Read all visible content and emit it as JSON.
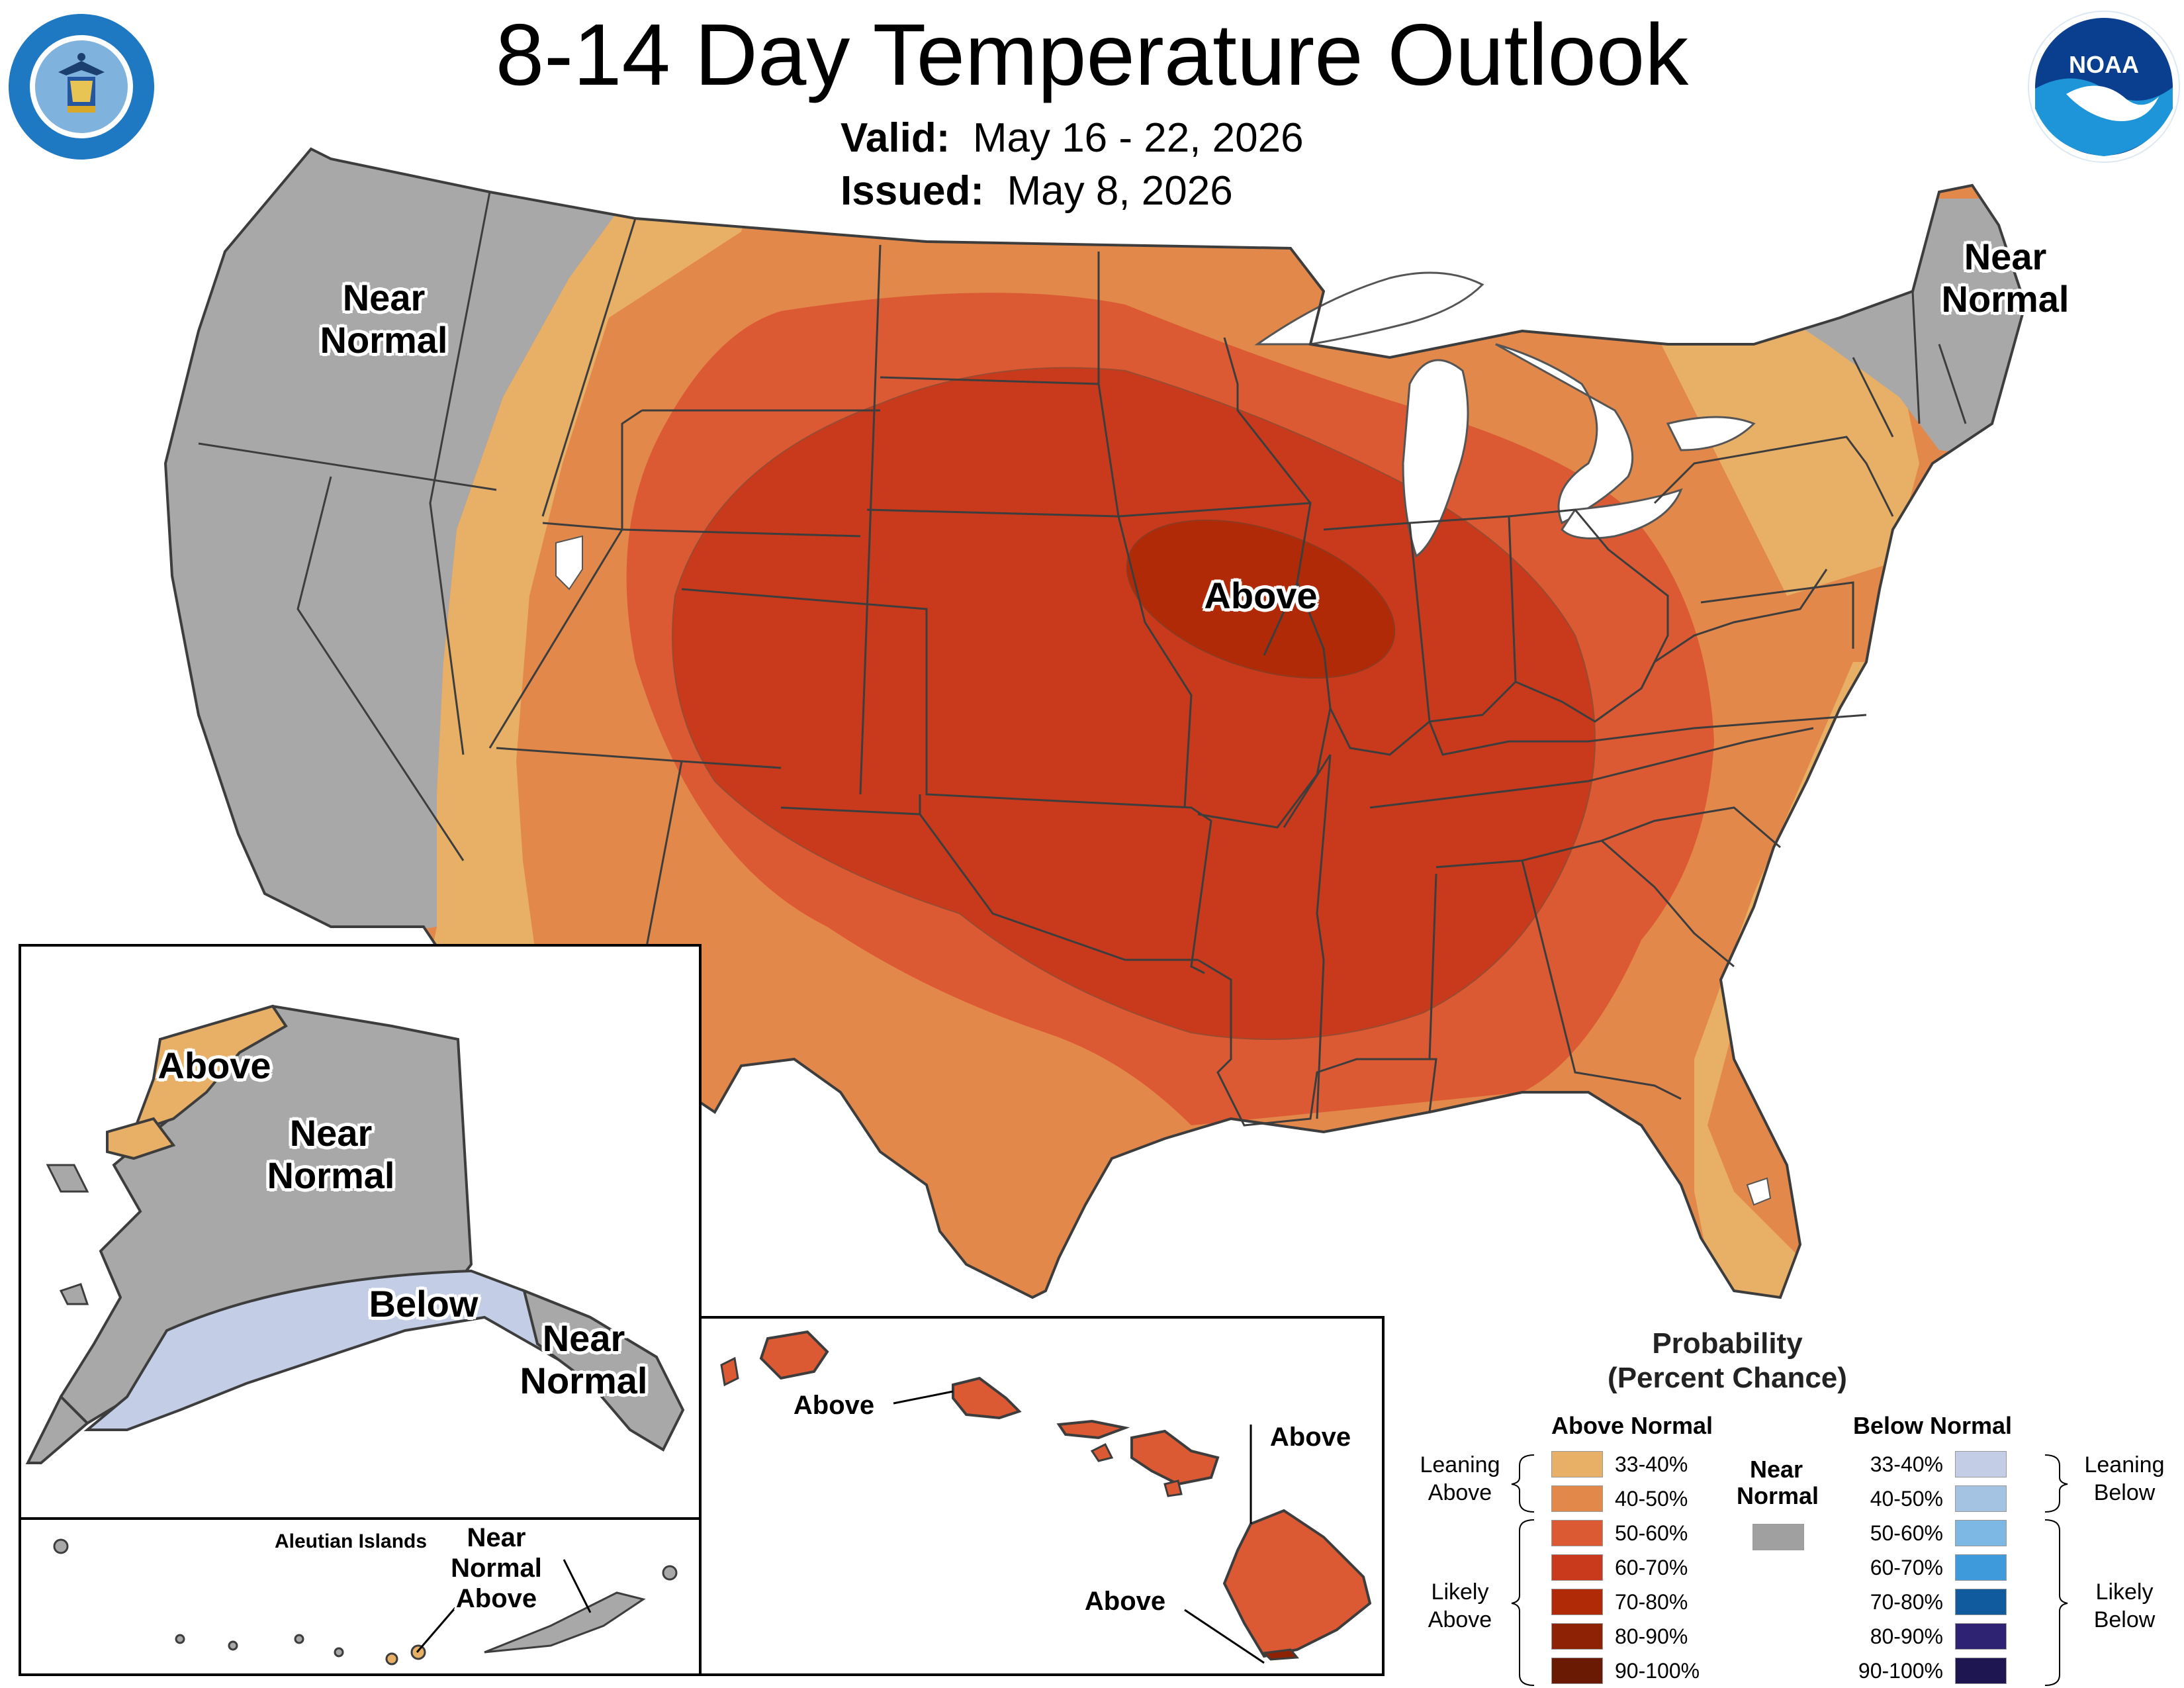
{
  "title": "8-14 Day Temperature Outlook",
  "valid": {
    "label": "Valid:",
    "value": "May 16 - 22, 2026"
  },
  "issued": {
    "label": "Issued:",
    "value": "May 8, 2026"
  },
  "logos": {
    "left": "department-of-commerce-seal",
    "right": "noaa-logo",
    "noaa_text": "NOAA"
  },
  "map_labels": {
    "conus_west": "Near\nNormal",
    "conus_northeast": "Near\nNormal",
    "conus_center": "Above",
    "alaska_northwest": "Above",
    "alaska_interior": "Near\nNormal",
    "alaska_south": "Below",
    "alaska_southeast": "Near\nNormal",
    "aleutian_title": "Aleutian Islands",
    "aleutian_label": "Near\nNormal\nAbove",
    "hawaii_kauai_oahu": "Above",
    "hawaii_maui": "Above",
    "hawaii_big_island": "Above"
  },
  "legend": {
    "title": "Probability\n(Percent Chance)",
    "above_header": "Above Normal",
    "below_header": "Below Normal",
    "near_header": "Near\nNormal",
    "leaning_above": "Leaning\nAbove",
    "likely_above": "Likely\nAbove",
    "leaning_below": "Leaning\nBelow",
    "likely_below": "Likely\nBelow",
    "above_bins": [
      {
        "range": "33-40%",
        "color": "#E8B066"
      },
      {
        "range": "40-50%",
        "color": "#E2884A"
      },
      {
        "range": "50-60%",
        "color": "#DB5A34"
      },
      {
        "range": "60-70%",
        "color": "#C93A1C"
      },
      {
        "range": "70-80%",
        "color": "#B12A08"
      },
      {
        "range": "80-90%",
        "color": "#8E2205"
      },
      {
        "range": "90-100%",
        "color": "#6A1A02"
      }
    ],
    "below_bins": [
      {
        "range": "33-40%",
        "color": "#C3CEE6"
      },
      {
        "range": "40-50%",
        "color": "#A4C2E2"
      },
      {
        "range": "50-60%",
        "color": "#7DB8E5"
      },
      {
        "range": "60-70%",
        "color": "#3F9ADB"
      },
      {
        "range": "70-80%",
        "color": "#0F5B9E"
      },
      {
        "range": "80-90%",
        "color": "#2E2273"
      },
      {
        "range": "90-100%",
        "color": "#1E1650"
      }
    ],
    "near_color": "#A0A0A0"
  },
  "palette": {
    "near_normal": "#A8A8A8",
    "lakes": "#FFFFFF",
    "borders": "#3D3D3D"
  }
}
